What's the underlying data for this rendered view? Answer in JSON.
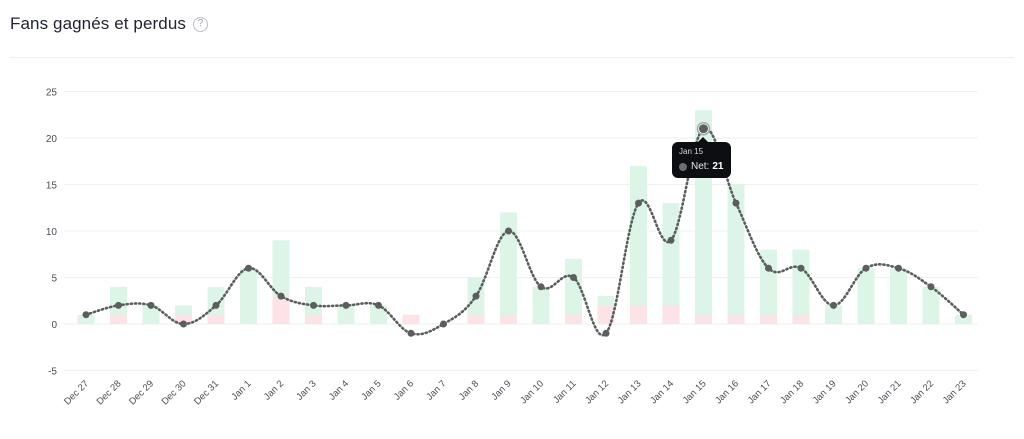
{
  "header": {
    "title": "Fans gagnés et perdus",
    "help_icon": "question-circle-icon",
    "help_glyph": "?"
  },
  "colors": {
    "gained": "#dcf5e7",
    "lost": "#fde2e6",
    "net_line": "#5a5e5c",
    "grid": "#eef0f2",
    "tick_text": "#4a4d55"
  },
  "chart_data": {
    "type": "bar",
    "categories": [
      "Dec 27",
      "Dec 28",
      "Dec 29",
      "Dec 30",
      "Dec 31",
      "Jan 1",
      "Jan 2",
      "Jan 3",
      "Jan 4",
      "Jan 5",
      "Jan 6",
      "Jan 7",
      "Jan 8",
      "Jan 9",
      "Jan 10",
      "Jan 11",
      "Jan 12",
      "Jan 13",
      "Jan 14",
      "Jan 15",
      "Jan 16",
      "Jan 17",
      "Jan 18",
      "Jan 19",
      "Jan 20",
      "Jan 21",
      "Jan 22",
      "Jan 23"
    ],
    "series": [
      {
        "values": [
          1,
          4,
          2,
          2,
          4,
          6,
          9,
          4,
          2,
          2,
          0,
          0,
          5,
          12,
          4,
          7,
          3,
          17,
          13,
          23,
          15,
          8,
          8,
          2,
          6,
          6,
          4,
          1
        ]
      },
      {
        "values": [
          0,
          1,
          0,
          1,
          1,
          0,
          3,
          1,
          0,
          0,
          1,
          0,
          1,
          1,
          0,
          1,
          2,
          2,
          2,
          1,
          1,
          1,
          1,
          0,
          0,
          0,
          0,
          0
        ]
      },
      {
        "name": "Net",
        "values": [
          1,
          2,
          2,
          0,
          2,
          6,
          3,
          2,
          2,
          2,
          -1,
          0,
          3,
          10,
          4,
          5,
          -1,
          13,
          9,
          21,
          13,
          6,
          6,
          2,
          6,
          6,
          4,
          1
        ]
      }
    ],
    "y_ticks": [
      -5,
      0,
      5,
      10,
      15,
      20,
      25
    ],
    "ylim": [
      -5,
      25
    ],
    "grid": true,
    "tooltip": {
      "date": "Jan 15",
      "label": "Net:",
      "value": "21"
    }
  }
}
